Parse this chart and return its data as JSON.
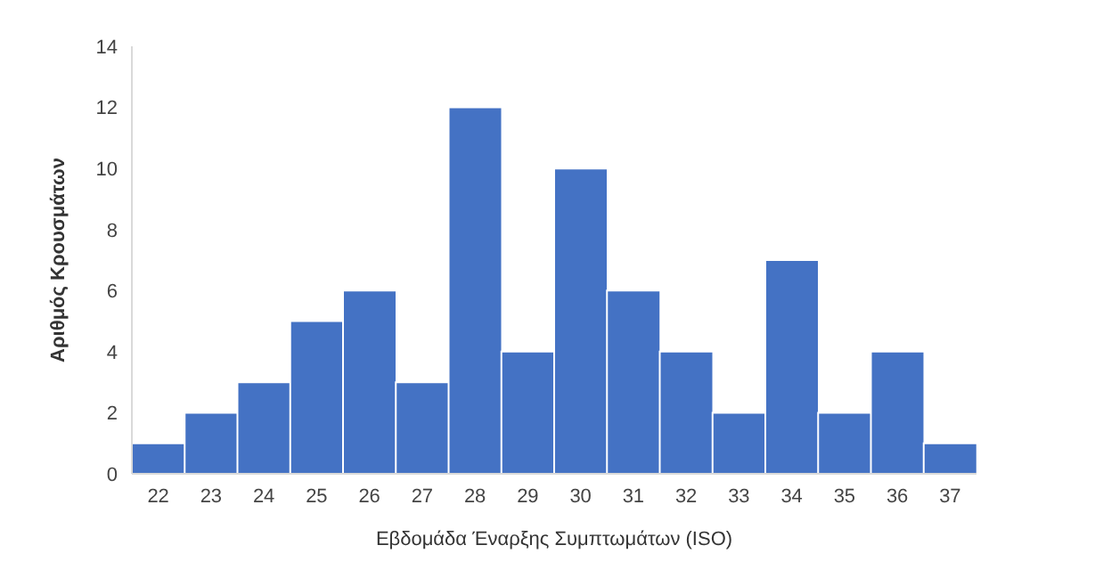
{
  "chart_data": {
    "type": "bar",
    "xlabel": "Εβδομάδα Έναρξης Συμπτωμάτων (ISO)",
    "ylabel": "Αριθμός Κρουσμάτων",
    "categories": [
      "22",
      "23",
      "24",
      "25",
      "26",
      "27",
      "28",
      "29",
      "30",
      "31",
      "32",
      "33",
      "34",
      "35",
      "36",
      "37"
    ],
    "values": [
      1,
      2,
      3,
      5,
      6,
      3,
      12,
      4,
      10,
      6,
      4,
      2,
      7,
      2,
      4,
      1
    ],
    "color": "#4472c4",
    "ylim": [
      0,
      14
    ],
    "yticks": [
      0,
      2,
      4,
      6,
      8,
      10,
      12,
      14
    ],
    "grid": false,
    "legend": false
  }
}
